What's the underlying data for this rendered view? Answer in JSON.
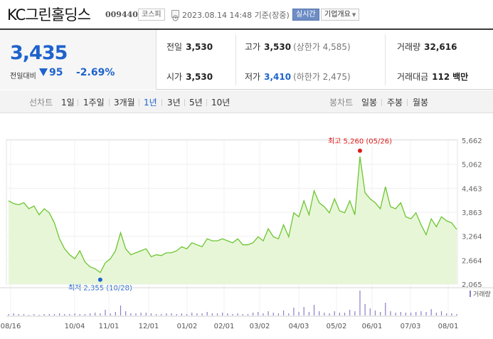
{
  "header": {
    "company_name": "KC그린홀딩스",
    "stock_code": "009440",
    "market": "코스피",
    "timestamp": "2023.08.14 14:48  기준(장중)",
    "realtime_label": "실시간",
    "company_info_label": "기업개요",
    "clock_icon": "clock-icon"
  },
  "summary": {
    "price": "3,435",
    "change_label": "전일대비",
    "change_value": "95",
    "change_pct": "-2.69%",
    "change_direction": "down",
    "prev_close_label": "전일",
    "prev_close": "3,530",
    "open_label": "시가",
    "open": "3,530",
    "high_label": "고가",
    "high": "3,530",
    "upper_limit": "(상한가 4,585)",
    "low_label": "저가",
    "low": "3,410",
    "lower_limit": "(하한가 2,475)",
    "volume_label": "거래량",
    "volume": "32,616",
    "amount_label": "거래대금",
    "amount": "112",
    "amount_unit": "백만",
    "down_color": "#1e63cc"
  },
  "periods": {
    "line_label": "선차트",
    "line_items": [
      "1일",
      "1주일",
      "3개월",
      "1년",
      "3년",
      "5년",
      "10년"
    ],
    "selected": "1년",
    "candle_label": "봉차트",
    "candle_items": [
      "일봉",
      "주봉",
      "월봉"
    ]
  },
  "chart_data": {
    "type": "area",
    "title": "",
    "line_color": "#6bc630",
    "fill_color": "#e8f6d8",
    "x_tick_labels": [
      "08/16",
      "10/04",
      "11/01",
      "12/01",
      "01/02",
      "02/01",
      "03/02",
      "04/03",
      "05/02",
      "06/01",
      "07/03",
      "08/01"
    ],
    "y_tick_labels": [
      "5,662",
      "5,062",
      "4,463",
      "3,863",
      "3,264",
      "2,664",
      "2,065"
    ],
    "ylim": [
      2065,
      5662
    ],
    "high_label": "최고 5,260 (05/26)",
    "low_label": "최저 2,355 (10/28)",
    "high_point": {
      "date": "05/26",
      "value": 5260
    },
    "low_point": {
      "date": "10/28",
      "value": 2355
    },
    "volume_legend": "거래량",
    "series": [
      {
        "dates": [
          "08/16",
          "08/19",
          "08/24",
          "08/29",
          "09/01",
          "09/06",
          "09/09",
          "09/14",
          "09/19",
          "09/22",
          "09/27",
          "09/30",
          "10/04",
          "10/07",
          "10/12",
          "10/17",
          "10/20",
          "10/25",
          "10/28",
          "11/01",
          "11/04",
          "11/09",
          "11/14",
          "11/17",
          "11/22",
          "11/25",
          "11/30",
          "12/05",
          "12/08",
          "12/13",
          "12/16",
          "12/21",
          "12/26",
          "12/29",
          "01/03",
          "01/06",
          "01/11",
          "01/16",
          "01/19",
          "01/24",
          "01/27",
          "02/01",
          "02/06",
          "02/09",
          "02/14",
          "02/17",
          "02/22",
          "02/27",
          "03/02",
          "03/07",
          "03/10",
          "03/15",
          "03/20",
          "03/23",
          "03/28",
          "03/31",
          "04/05",
          "04/10",
          "04/13",
          "04/18",
          "04/21",
          "04/26",
          "05/01",
          "05/04",
          "05/09",
          "05/12",
          "05/17",
          "05/22",
          "05/24",
          "05/26",
          "05/30",
          "06/02",
          "06/07",
          "06/12",
          "06/15",
          "06/20",
          "06/23",
          "06/28",
          "07/03",
          "07/06",
          "07/11",
          "07/14",
          "07/19",
          "07/24",
          "07/27",
          "08/01",
          "08/04",
          "08/09",
          "08/14"
        ],
        "values": [
          4150,
          4080,
          4050,
          4100,
          3950,
          4020,
          3800,
          3950,
          3850,
          3600,
          3200,
          2950,
          2800,
          2700,
          2900,
          2620,
          2500,
          2450,
          2355,
          2600,
          2700,
          2900,
          3350,
          2950,
          2800,
          2850,
          2900,
          2950,
          2750,
          2800,
          2780,
          2850,
          2850,
          2900,
          3000,
          2950,
          3100,
          3050,
          3000,
          3200,
          3150,
          3150,
          3200,
          3150,
          3100,
          3200,
          3050,
          3050,
          3100,
          3250,
          3150,
          3450,
          3250,
          3200,
          3550,
          3250,
          3850,
          3750,
          4150,
          3800,
          4400,
          4100,
          4000,
          3850,
          4200,
          3900,
          3850,
          4150,
          3800,
          5260,
          4350,
          4200,
          4100,
          3950,
          4500,
          4000,
          3950,
          4100,
          3750,
          3700,
          3850,
          3550,
          3300,
          3700,
          3500,
          3750,
          3650,
          3600,
          3435
        ]
      }
    ],
    "volume_values": [
      2,
      3,
      2,
      2,
      1,
      2,
      1,
      2,
      2,
      2,
      3,
      2,
      2,
      3,
      2,
      2,
      3,
      4,
      3,
      8,
      3,
      5,
      14,
      6,
      3,
      3,
      4,
      4,
      3,
      2,
      2,
      3,
      3,
      2,
      3,
      2,
      4,
      3,
      3,
      5,
      3,
      3,
      4,
      3,
      2,
      3,
      2,
      2,
      4,
      5,
      3,
      6,
      4,
      3,
      7,
      3,
      11,
      5,
      12,
      5,
      15,
      6,
      4,
      3,
      6,
      4,
      4,
      8,
      6,
      35,
      16,
      10,
      7,
      5,
      18,
      6,
      4,
      5,
      4,
      4,
      5,
      6,
      5,
      9,
      4,
      6,
      3,
      3,
      2
    ]
  }
}
